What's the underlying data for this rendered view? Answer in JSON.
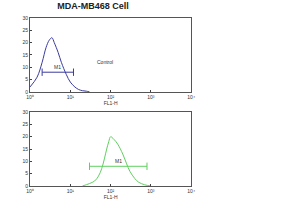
{
  "chart_data": [
    {
      "type": "line",
      "title": "MDA-MB468 Cell",
      "x_label": "FL1-H",
      "log": "x",
      "grid": false,
      "xlim": [
        1,
        10000
      ],
      "xticks": [
        {
          "value": 1,
          "label": "10⁰"
        },
        {
          "value": 10,
          "label": "10¹"
        },
        {
          "value": 100,
          "label": "10²"
        },
        {
          "value": 1000,
          "label": "10³"
        },
        {
          "value": 10000,
          "label": "10⁴"
        }
      ],
      "ylim": [
        0,
        30
      ],
      "yticks": [
        0,
        5,
        10,
        15,
        20,
        25,
        30
      ],
      "series": [
        {
          "name": "Control",
          "color": "#3b3b9e",
          "x": [
            1,
            1.5,
            2,
            2.5,
            3,
            3.5,
            4,
            5,
            6,
            8,
            10,
            13,
            16,
            20,
            25,
            30
          ],
          "values": [
            2,
            6,
            12,
            18,
            21,
            22,
            20,
            16,
            12,
            7,
            4,
            2,
            1,
            0.5,
            0.3,
            0
          ]
        }
      ],
      "gate": {
        "label": "M1",
        "x": [
          2,
          12
        ],
        "y": 8
      },
      "annotations": [
        {
          "text": "Control",
          "x": 40,
          "y": 12
        }
      ]
    },
    {
      "type": "line",
      "x_label": "FL1-H",
      "log": "x",
      "grid": false,
      "xlim": [
        1,
        10000
      ],
      "xticks": [
        {
          "value": 1,
          "label": "10⁰"
        },
        {
          "value": 10,
          "label": "10¹"
        },
        {
          "value": 100,
          "label": "10²"
        },
        {
          "value": 1000,
          "label": "10³"
        },
        {
          "value": 10000,
          "label": "10⁴"
        }
      ],
      "ylim": [
        0,
        30
      ],
      "yticks": [
        0,
        5,
        10,
        15,
        20,
        25,
        30
      ],
      "series": [
        {
          "color": "#5fcf5f",
          "x": [
            20,
            30,
            40,
            50,
            60,
            70,
            80,
            90,
            100,
            120,
            150,
            200,
            250,
            300,
            400,
            500,
            700,
            1000
          ],
          "values": [
            0,
            1,
            2,
            4,
            7,
            11,
            15,
            18,
            20,
            19,
            17,
            13,
            9,
            6,
            3,
            1.5,
            0.5,
            0
          ]
        }
      ],
      "gate": {
        "label": "M1",
        "x": [
          30,
          800
        ],
        "y": 8
      }
    }
  ]
}
